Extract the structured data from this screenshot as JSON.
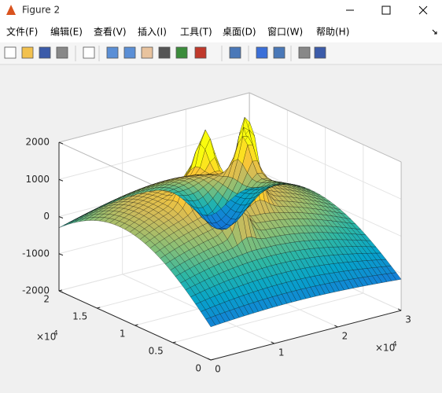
{
  "window": {
    "title": "Figure 2",
    "menu": [
      "文件(F)",
      "编辑(E)",
      "查看(V)",
      "插入(I)",
      "工具(T)",
      "桌面(D)",
      "窗口(W)",
      "帮助(H)"
    ]
  },
  "chart_data": {
    "type": "surface",
    "xlim": [
      0,
      3
    ],
    "xticks": [
      0,
      1,
      2,
      3
    ],
    "ylim": [
      0,
      2
    ],
    "yticks": [
      0,
      0.5,
      1,
      1.5,
      2
    ],
    "zlim": [
      -2000,
      2000
    ],
    "zticks": [
      -2000,
      -1000,
      0,
      1000,
      2000
    ],
    "x_multiplier": "×10",
    "x_multiplier_exp": "4",
    "y_multiplier": "×10",
    "y_multiplier_exp": "4",
    "grid": true
  }
}
